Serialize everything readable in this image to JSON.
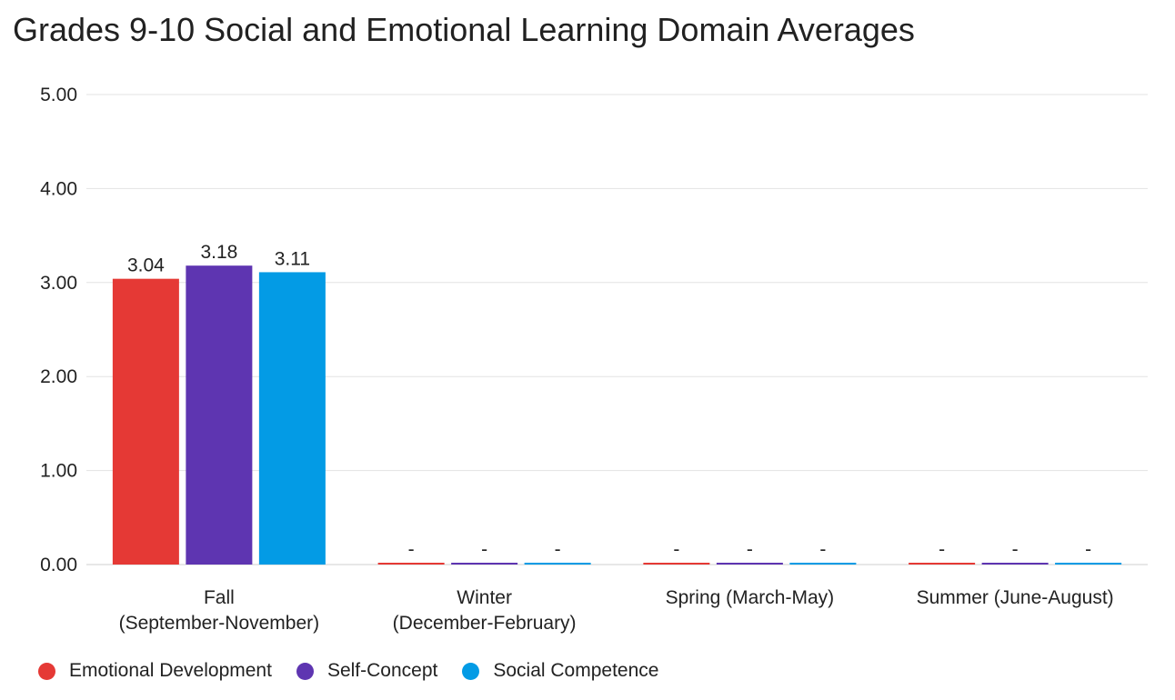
{
  "chart_data": {
    "type": "bar",
    "title": "Grades 9-10 Social and Emotional Learning Domain Averages",
    "categories": [
      [
        "Fall",
        "(September-November)"
      ],
      [
        "Winter",
        "(December-February)"
      ],
      [
        "Spring (March-May)"
      ],
      [
        "Summer (June-August)"
      ]
    ],
    "series": [
      {
        "name": "Emotional Development",
        "color": "#e53935",
        "values": [
          3.04,
          0,
          0,
          0
        ],
        "labels": [
          "3.04",
          "-",
          "-",
          "-"
        ]
      },
      {
        "name": "Self-Concept",
        "color": "#5e35b1",
        "values": [
          3.18,
          0,
          0,
          0
        ],
        "labels": [
          "3.18",
          "-",
          "-",
          "-"
        ]
      },
      {
        "name": "Social Competence",
        "color": "#039be5",
        "values": [
          3.11,
          0,
          0,
          0
        ],
        "labels": [
          "3.11",
          "-",
          "-",
          "-"
        ]
      }
    ],
    "ylim": [
      0,
      5
    ],
    "yticks": [
      "0.00",
      "1.00",
      "2.00",
      "3.00",
      "4.00",
      "5.00"
    ],
    "grid": true,
    "legend_position": "bottom-left"
  }
}
